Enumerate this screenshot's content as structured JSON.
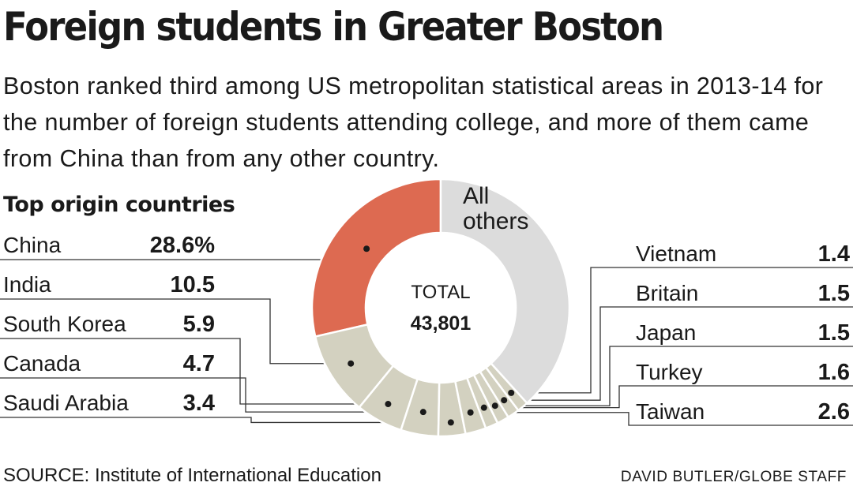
{
  "header": {
    "title": "Foreign students in Greater Boston",
    "subtitle": "Boston ranked third among US metropolitan statistical areas in 2013-14 for the number of foreign students attending college, and more of them came from China than from any other country."
  },
  "chart_data": {
    "type": "pie",
    "variant": "donut",
    "section_heading": "Top origin countries",
    "center_label": "TOTAL",
    "center_value": "43,801",
    "slices": [
      {
        "label": "China",
        "value": 28.6,
        "value_text": "28.6%",
        "color": "#dd6a51"
      },
      {
        "label": "India",
        "value": 10.5,
        "value_text": "10.5",
        "color": "#d3d1c0"
      },
      {
        "label": "South Korea",
        "value": 5.9,
        "value_text": "5.9",
        "color": "#d3d1c0"
      },
      {
        "label": "Canada",
        "value": 4.7,
        "value_text": "4.7",
        "color": "#d3d1c0"
      },
      {
        "label": "Saudi Arabia",
        "value": 3.4,
        "value_text": "3.4",
        "color": "#d3d1c0"
      },
      {
        "label": "Taiwan",
        "value": 2.6,
        "value_text": "2.6",
        "color": "#d3d1c0"
      },
      {
        "label": "Turkey",
        "value": 1.6,
        "value_text": "1.6",
        "color": "#d3d1c0"
      },
      {
        "label": "Japan",
        "value": 1.5,
        "value_text": "1.5",
        "color": "#d3d1c0"
      },
      {
        "label": "Britain",
        "value": 1.5,
        "value_text": "1.5",
        "color": "#d3d1c0"
      },
      {
        "label": "Vietnam",
        "value": 1.4,
        "value_text": "1.4",
        "color": "#d3d1c0"
      },
      {
        "label": "All others",
        "value": 38.3,
        "value_text": "",
        "color": "#dcdcdc"
      }
    ]
  },
  "footer": {
    "source": "SOURCE: Institute of International Education",
    "credit": "DAVID BUTLER/GLOBE STAFF"
  }
}
